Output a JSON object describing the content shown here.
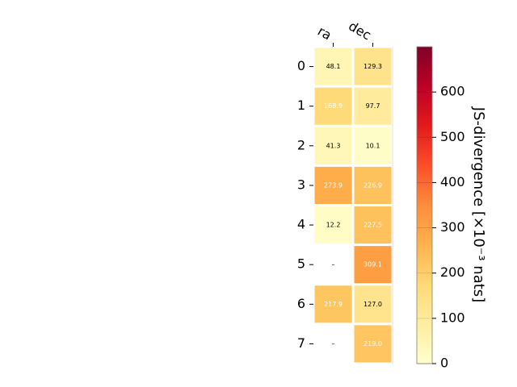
{
  "chart_data": {
    "type": "heatmap",
    "columns": [
      "ra",
      "dec"
    ],
    "rows": [
      "0",
      "1",
      "2",
      "3",
      "4",
      "5",
      "6",
      "7"
    ],
    "values": [
      [
        48.1,
        129.3
      ],
      [
        168.9,
        97.7
      ],
      [
        41.3,
        10.1
      ],
      [
        273.9,
        226.9
      ],
      [
        12.2,
        227.5
      ],
      [
        null,
        309.1
      ],
      [
        217.9,
        127.0
      ],
      [
        null,
        219.0
      ]
    ],
    "labels": [
      [
        "48.1",
        "129.3"
      ],
      [
        "168.9",
        "97.7"
      ],
      [
        "41.3",
        "10.1"
      ],
      [
        "273.9",
        "226.9"
      ],
      [
        "12.2",
        "227.5"
      ],
      [
        "–",
        "309.1"
      ],
      [
        "217.9",
        "127.0"
      ],
      [
        "–",
        "219.0"
      ]
    ],
    "colorbar": {
      "label": "JS-divergence [×10⁻³ nats]",
      "range": [
        0,
        700
      ],
      "ticks": [
        "0",
        "100",
        "200",
        "300",
        "400",
        "500",
        "600"
      ],
      "tick_values": [
        0,
        100,
        200,
        300,
        400,
        500,
        600
      ],
      "colormap": "YlOrRd"
    }
  }
}
